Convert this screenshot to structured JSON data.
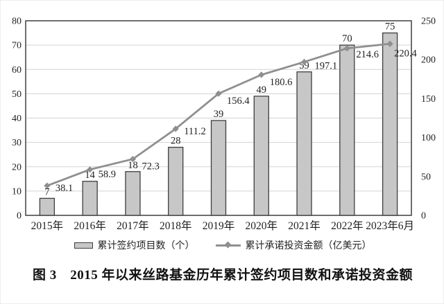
{
  "chart_data": {
    "type": "bar",
    "combo": "bar+line",
    "categories": [
      "2015年",
      "2016年",
      "2017年",
      "2018年",
      "2019年",
      "2020年",
      "2021年",
      "2022年",
      "2023年6月"
    ],
    "series": [
      {
        "name": "累计签约项目数（个）",
        "type": "bar",
        "axis": "left",
        "values": [
          7,
          14,
          18,
          28,
          39,
          49,
          59,
          70,
          75
        ],
        "labels": [
          "7",
          "14",
          "18",
          "28",
          "39",
          "49",
          "59",
          "70",
          "75"
        ]
      },
      {
        "name": "累计承诺投资金额（亿美元）",
        "type": "line",
        "axis": "right",
        "values": [
          38.1,
          58.9,
          72.3,
          111.2,
          156.4,
          180.6,
          197.1,
          214.6,
          220.4
        ],
        "labels": [
          "38.1",
          "58.9",
          "72.3",
          "111.2",
          "156.4",
          "180.6",
          "197.1",
          "214.6",
          "220.4"
        ]
      }
    ],
    "left_axis": {
      "min": 0,
      "max": 80,
      "step": 10,
      "ticks": [
        "0",
        "10",
        "20",
        "30",
        "40",
        "50",
        "60",
        "70",
        "80"
      ]
    },
    "right_axis": {
      "min": 0,
      "max": 250,
      "step": 50,
      "ticks": [
        "0",
        "50",
        "100",
        "150",
        "200",
        "250"
      ]
    },
    "grid": true,
    "legend_position": "bottom",
    "title": ""
  },
  "caption": "图 3　2015 年以来丝路基金历年累计签约项目数和承诺投资金额",
  "colors": {
    "bar_fill": "#c7c7c7",
    "bar_border": "#3d3d3d",
    "line": "#8f8f8f",
    "grid": "#d3d3d3",
    "plot_border": "#4a4a4a",
    "text": "#1f1f1f"
  }
}
